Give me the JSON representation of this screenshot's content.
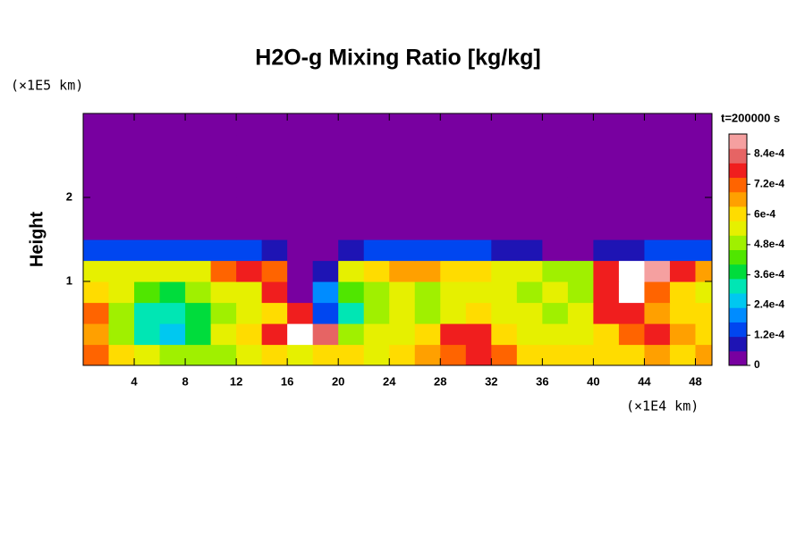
{
  "chart_data": {
    "type": "heatmap",
    "title": "H2O-g Mixing Ratio [kg/kg]",
    "y_label": "Height",
    "y_unit": "(×1E5 km)",
    "x_unit": "(×1E4 km)",
    "time_label": "t=200000 s",
    "xlim": [
      0,
      49.3
    ],
    "ylim": [
      0,
      3
    ],
    "xticks": [
      4,
      8,
      12,
      16,
      20,
      24,
      28,
      32,
      36,
      40,
      44,
      48
    ],
    "yticks": [
      1,
      2
    ],
    "clim": [
      0,
      0.00092
    ],
    "cticks": [
      0,
      {
        "value": 0.00012,
        "label": "1.2e-4"
      },
      {
        "value": 0.00024,
        "label": "2.4e-4"
      },
      {
        "value": 0.00036,
        "label": "3.6e-4"
      },
      {
        "value": 0.00048,
        "label": "4.8e-4"
      },
      {
        "value": 0.0006,
        "label": "6e-4"
      },
      {
        "value": 0.00072,
        "label": "7.2e-4"
      },
      {
        "value": 0.00084,
        "label": "8.4e-4"
      }
    ],
    "colormap": [
      "#7800a0",
      "#1e14b4",
      "#0046f0",
      "#008cff",
      "#00c8f0",
      "#00e6b4",
      "#00dc3c",
      "#50e600",
      "#a0f000",
      "#e6f000",
      "#ffdc00",
      "#ffa000",
      "#ff6400",
      "#f01e1e",
      "#e66464",
      "#f5a0a0"
    ],
    "over_color": "#ffffff",
    "x": [
      1,
      3,
      5,
      7,
      9,
      11,
      13,
      15,
      17,
      19,
      21,
      23,
      25,
      27,
      29,
      31,
      33,
      35,
      37,
      39,
      41,
      43,
      45,
      47,
      49
    ],
    "y": [
      0.125,
      0.375,
      0.625,
      0.875,
      1.125,
      1.375,
      1.625,
      1.875,
      2.125,
      2.375,
      2.625,
      2.875
    ],
    "z": [
      [
        0.0007,
        0.0006,
        0.00055,
        0.0005,
        0.0005,
        0.0005,
        0.00055,
        0.0006,
        0.00055,
        0.0006,
        0.0006,
        0.00055,
        0.0006,
        0.00065,
        0.0007,
        0.0008,
        0.0007,
        0.0006,
        0.0006,
        0.0006,
        0.0006,
        0.0006,
        0.00065,
        0.0006,
        0.00065
      ],
      [
        0.00065,
        0.0005,
        0.0003,
        0.00028,
        0.0004,
        0.00055,
        0.0006,
        0.0008,
        0.00095,
        0.00085,
        0.0005,
        0.00055,
        0.00055,
        0.0006,
        0.00075,
        0.0008,
        0.0006,
        0.00055,
        0.00055,
        0.00055,
        0.0006,
        0.0007,
        0.00075,
        0.00065,
        0.0006
      ],
      [
        0.0007,
        0.0005,
        0.00032,
        0.0003,
        0.00035,
        0.0005,
        0.00055,
        0.0006,
        0.00075,
        0.00015,
        0.0003,
        0.0005,
        0.00055,
        0.0005,
        0.00055,
        0.0006,
        0.00055,
        0.00055,
        0.0005,
        0.00055,
        0.0008,
        0.00075,
        0.00065,
        0.0006,
        0.0006
      ],
      [
        0.0006,
        0.00055,
        0.00045,
        0.0004,
        0.0005,
        0.00055,
        0.00055,
        0.0008,
        0,
        0.0002,
        0.00045,
        0.0005,
        0.00055,
        0.0005,
        0.00055,
        0.00055,
        0.00055,
        0.0005,
        0.00055,
        0.0005,
        0.0008,
        0.00095,
        0.0007,
        0.0006,
        0.00055
      ],
      [
        0.00055,
        0.00055,
        0.00055,
        0.00055,
        0.00055,
        0.0007,
        0.0008,
        0.0007,
        0,
        0.0001,
        0.00055,
        0.0006,
        0.00065,
        0.00065,
        0.0006,
        0.0006,
        0.00055,
        0.00055,
        0.0005,
        0.0005,
        0.00075,
        0.00095,
        0.0009,
        0.00075,
        0.00065
      ],
      [
        0.00015,
        0.00015,
        0.00015,
        0.00015,
        0.00015,
        0.00015,
        0.00012,
        8e-05,
        0,
        0,
        0.0001,
        0.00015,
        0.00015,
        0.00015,
        0.00012,
        0.00012,
        0.0001,
        8e-05,
        5e-05,
        5e-05,
        8e-05,
        0.0001,
        0.00012,
        0.00015,
        0.00015
      ],
      [
        0,
        0,
        0,
        0,
        0,
        0,
        0,
        0,
        0,
        0,
        0,
        0,
        0,
        0,
        0,
        0,
        0,
        0,
        0,
        0,
        0,
        0,
        0,
        0,
        0
      ],
      [
        0,
        0,
        0,
        0,
        0,
        0,
        0,
        0,
        0,
        0,
        0,
        0,
        0,
        0,
        0,
        0,
        0,
        0,
        0,
        0,
        0,
        0,
        0,
        0,
        0
      ],
      [
        0,
        0,
        0,
        0,
        0,
        0,
        0,
        0,
        0,
        0,
        0,
        0,
        0,
        0,
        0,
        0,
        0,
        0,
        0,
        0,
        0,
        0,
        0,
        0,
        0
      ],
      [
        0,
        0,
        0,
        0,
        0,
        0,
        0,
        0,
        0,
        0,
        0,
        0,
        0,
        0,
        0,
        0,
        0,
        0,
        0,
        0,
        0,
        0,
        0,
        0,
        0
      ],
      [
        0,
        0,
        0,
        0,
        0,
        0,
        0,
        0,
        0,
        0,
        0,
        0,
        0,
        0,
        0,
        0,
        0,
        0,
        0,
        0,
        0,
        0,
        0,
        0,
        0
      ],
      [
        0,
        0,
        0,
        0,
        0,
        0,
        0,
        0,
        0,
        0,
        0,
        0,
        0,
        0,
        0,
        0,
        0,
        0,
        0,
        0,
        0,
        0,
        0,
        0,
        0
      ]
    ]
  }
}
